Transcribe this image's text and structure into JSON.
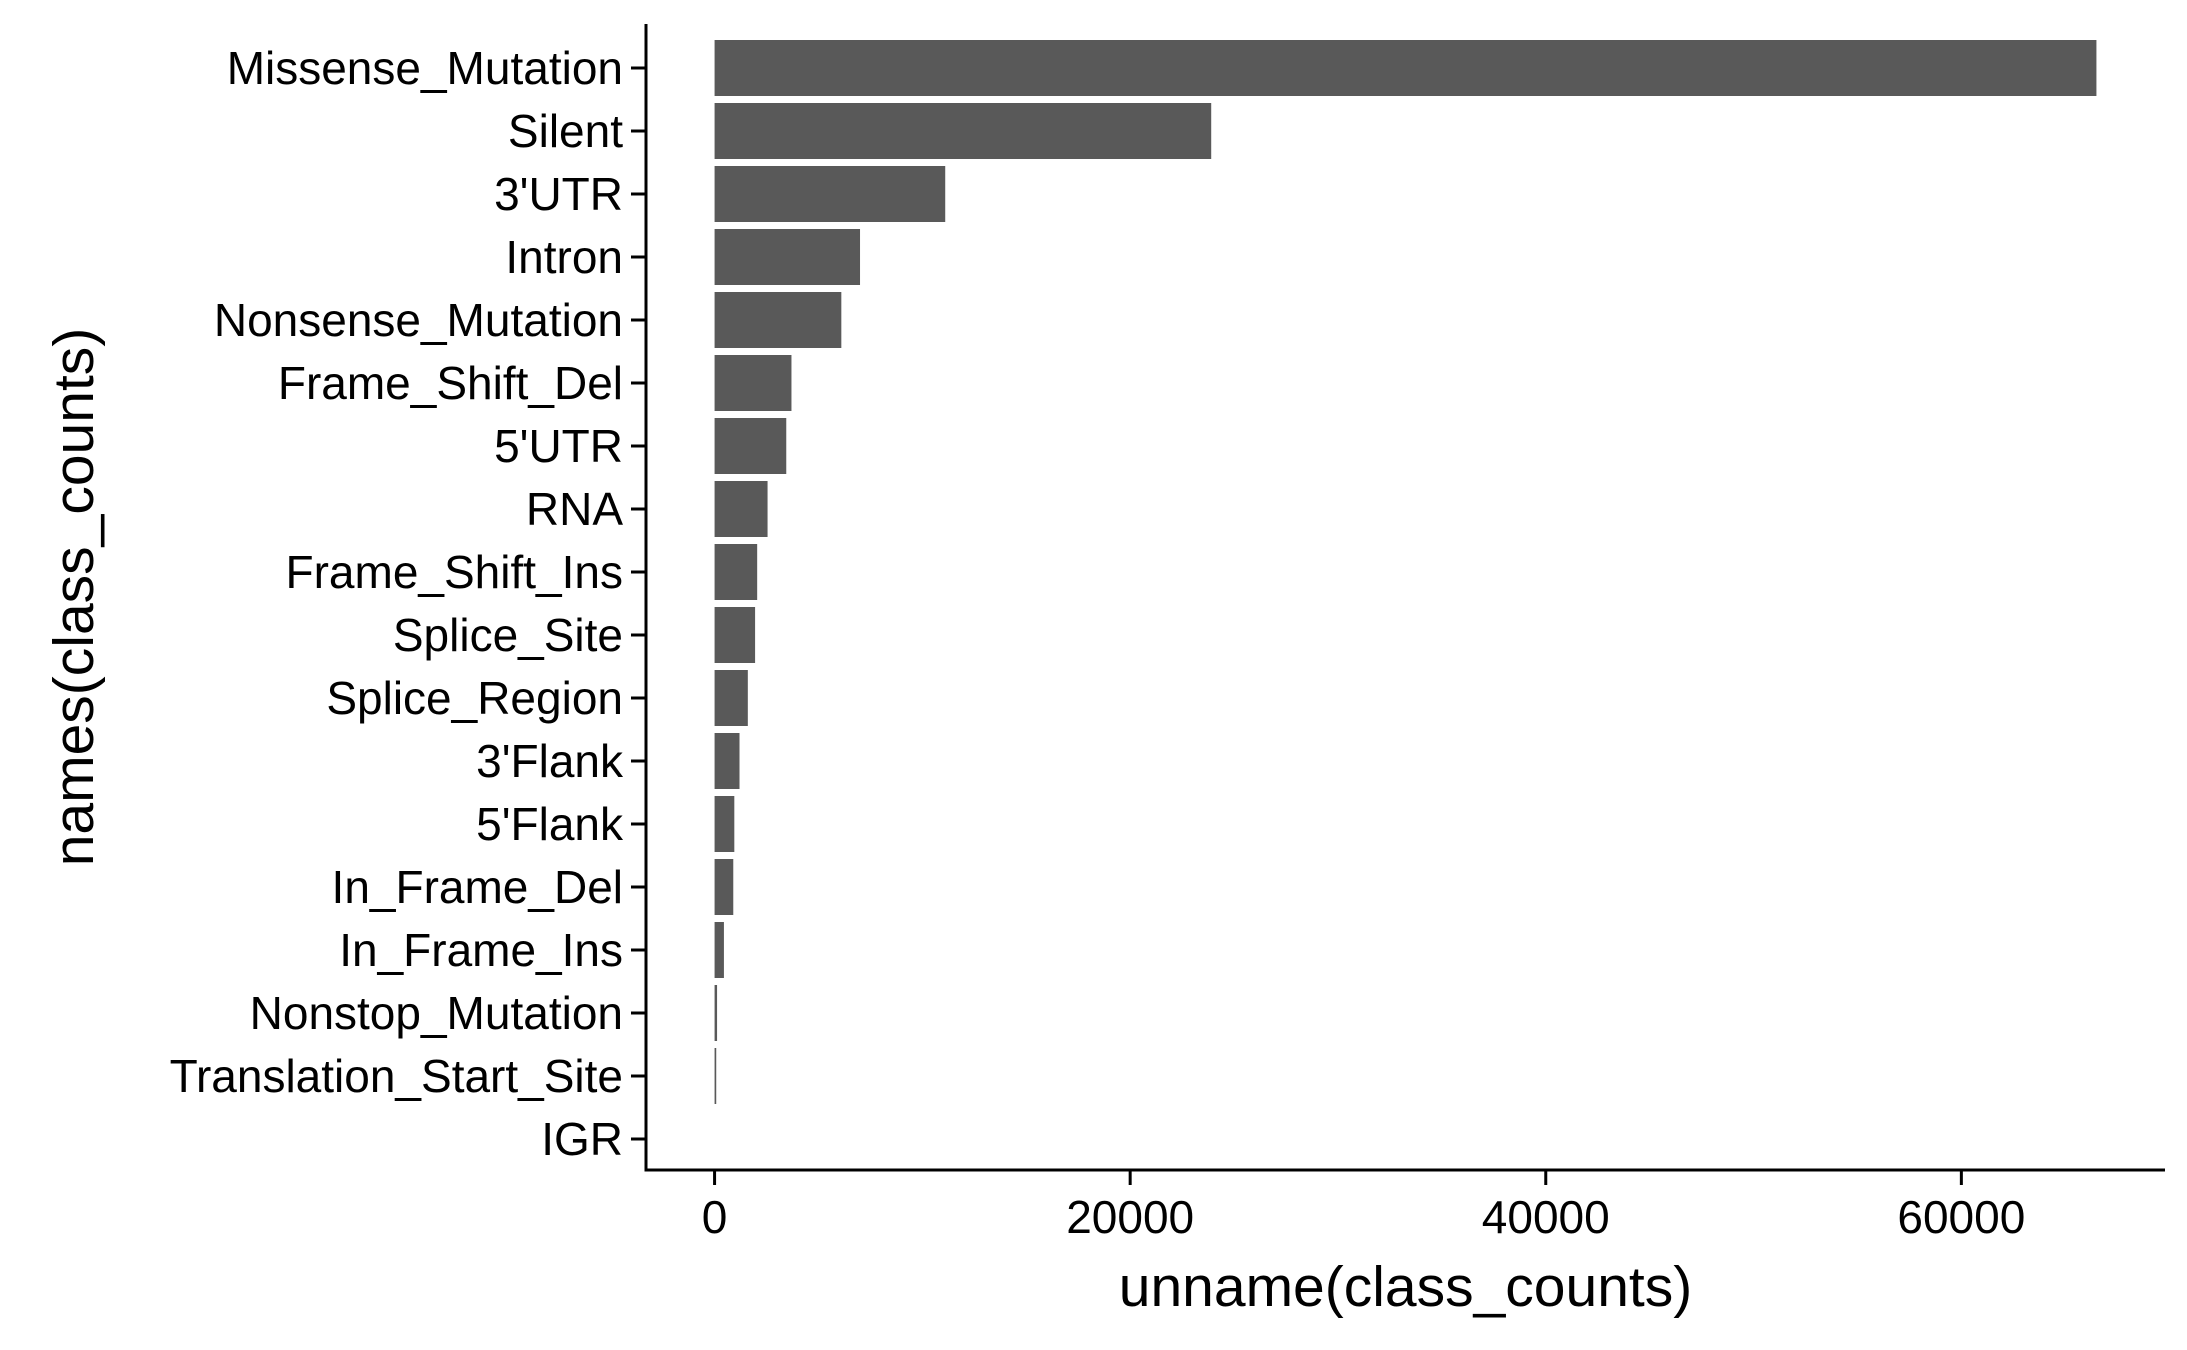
{
  "chart_data": {
    "type": "bar",
    "orientation": "horizontal",
    "title": "",
    "xlabel": "unname(class_counts)",
    "ylabel": "names(class_counts)",
    "categories": [
      "Missense_Mutation",
      "Silent",
      "3'UTR",
      "Intron",
      "Nonsense_Mutation",
      "Frame_Shift_Del",
      "5'UTR",
      "RNA",
      "Frame_Shift_Ins",
      "Splice_Site",
      "Splice_Region",
      "3'Flank",
      "5'Flank",
      "In_Frame_Del",
      "In_Frame_Ins",
      "Nonstop_Mutation",
      "Translation_Start_Site",
      "IGR"
    ],
    "values": [
      66500,
      23900,
      11100,
      7000,
      6100,
      3700,
      3450,
      2550,
      2050,
      1950,
      1600,
      1200,
      950,
      900,
      450,
      120,
      80,
      0
    ],
    "xlim": [
      -3300,
      69800
    ],
    "xticks": [
      0,
      20000,
      40000,
      60000
    ],
    "xtick_labels": [
      "0",
      "20000",
      "40000",
      "60000"
    ],
    "grid": false,
    "legend": "none",
    "bar_color": "#595959",
    "axis_color": "#000000"
  }
}
